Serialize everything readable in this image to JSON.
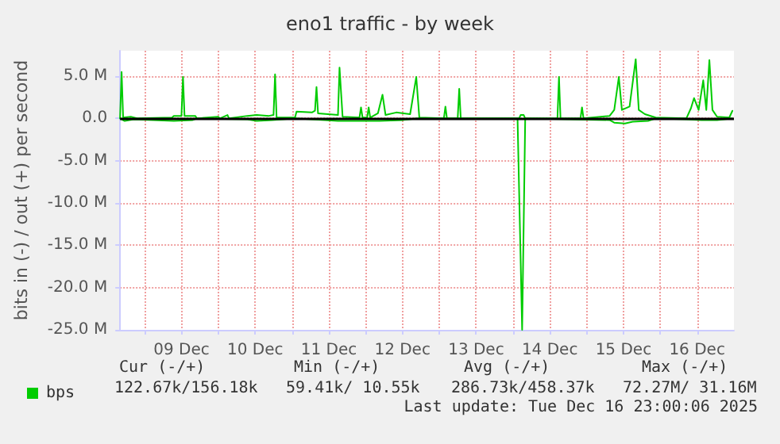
{
  "chart_data": {
    "type": "line",
    "title": "eno1 traffic - by week",
    "ylabel": "bits in (-) / out (+) per second",
    "xlim": [
      "2025-12-08T16:00",
      "2025-12-17T00:00"
    ],
    "xticks": [
      {
        "value": "2025-12-09T00:00",
        "label": null
      },
      {
        "value": "2025-12-09T12:00",
        "label": "09 Dec"
      },
      {
        "value": "2025-12-10T00:00",
        "label": null
      },
      {
        "value": "2025-12-10T12:00",
        "label": "10 Dec"
      },
      {
        "value": "2025-12-11T00:00",
        "label": null
      },
      {
        "value": "2025-12-11T12:00",
        "label": "11 Dec"
      },
      {
        "value": "2025-12-12T00:00",
        "label": null
      },
      {
        "value": "2025-12-12T12:00",
        "label": "12 Dec"
      },
      {
        "value": "2025-12-13T00:00",
        "label": null
      },
      {
        "value": "2025-12-13T12:00",
        "label": "13 Dec"
      },
      {
        "value": "2025-12-14T00:00",
        "label": null
      },
      {
        "value": "2025-12-14T12:00",
        "label": "14 Dec"
      },
      {
        "value": "2025-12-15T00:00",
        "label": null
      },
      {
        "value": "2025-12-15T12:00",
        "label": "15 Dec"
      },
      {
        "value": "2025-12-16T00:00",
        "label": null
      },
      {
        "value": "2025-12-16T12:00",
        "label": "16 Dec"
      }
    ],
    "ylim": [
      -25000000,
      8000000
    ],
    "yticks": [
      {
        "value": -25000000,
        "label": "-25.0 M"
      },
      {
        "value": -20000000,
        "label": "-20.0 M"
      },
      {
        "value": -15000000,
        "label": "-15.0 M"
      },
      {
        "value": -10000000,
        "label": "-10.0 M"
      },
      {
        "value": -5000000,
        "label": "-5.0 M"
      },
      {
        "value": 0,
        "label": "0.0"
      },
      {
        "value": 5000000,
        "label": "5.0 M"
      }
    ],
    "grid": true,
    "legend": "bottom left",
    "marker": "none",
    "line_style": "solid",
    "ref_lines": [
      {
        "axis": "y",
        "value": 0,
        "label": null,
        "color": "#000000"
      }
    ],
    "series": [
      {
        "name": "bps",
        "color": "#00cc00",
        "x": [
          "2025-12-08T16:00",
          "2025-12-08T16:30",
          "2025-12-08T17:00",
          "2025-12-08T19:30",
          "2025-12-08T21:30",
          "2025-12-09T09:00",
          "2025-12-09T09:30",
          "2025-12-09T12:00",
          "2025-12-09T12:30",
          "2025-12-09T13:00",
          "2025-12-09T16:30",
          "2025-12-09T17:00",
          "2025-12-10T00:00",
          "2025-12-10T00:30",
          "2025-12-10T03:00",
          "2025-12-10T03:30",
          "2025-12-10T09:30",
          "2025-12-10T12:30",
          "2025-12-10T16:30",
          "2025-12-10T18:00",
          "2025-12-10T18:30",
          "2025-12-10T19:00",
          "2025-12-11T01:00",
          "2025-12-11T01:30",
          "2025-12-11T06:30",
          "2025-12-11T07:30",
          "2025-12-11T08:00",
          "2025-12-11T08:30",
          "2025-12-11T15:00",
          "2025-12-11T15:30",
          "2025-12-11T16:30",
          "2025-12-11T22:00",
          "2025-12-11T22:30",
          "2025-12-11T23:00",
          "2025-12-12T00:30",
          "2025-12-12T01:00",
          "2025-12-12T01:30",
          "2025-12-12T04:00",
          "2025-12-12T05:30",
          "2025-12-12T06:30",
          "2025-12-12T10:00",
          "2025-12-12T14:30",
          "2025-12-12T16:30",
          "2025-12-12T17:30",
          "2025-12-13T01:30",
          "2025-12-13T02:00",
          "2025-12-13T02:30",
          "2025-12-13T06:00",
          "2025-12-13T06:30",
          "2025-12-13T07:00",
          "2025-12-14T02:00",
          "2025-12-14T02:30",
          "2025-12-14T03:30",
          "2025-12-14T04:00",
          "2025-12-14T14:30",
          "2025-12-14T15:00",
          "2025-12-14T15:30",
          "2025-12-14T22:00",
          "2025-12-14T22:30",
          "2025-12-14T23:00",
          "2025-12-15T07:30",
          "2025-12-15T09:00",
          "2025-12-15T10:30",
          "2025-12-15T11:30",
          "2025-12-15T14:00",
          "2025-12-15T16:00",
          "2025-12-15T17:00",
          "2025-12-15T19:00",
          "2025-12-15T22:30",
          "2025-12-16T08:30",
          "2025-12-16T10:00",
          "2025-12-16T11:00",
          "2025-12-16T12:30",
          "2025-12-16T14:00",
          "2025-12-16T15:00",
          "2025-12-16T16:00",
          "2025-12-16T17:00",
          "2025-12-16T18:30",
          "2025-12-16T22:30",
          "2025-12-16T23:30"
        ],
        "values": [
          0,
          5500000,
          100000,
          200000,
          0,
          100000,
          300000,
          300000,
          4900000,
          300000,
          300000,
          0,
          200000,
          0,
          400000,
          0,
          300000,
          400000,
          300000,
          400000,
          5200000,
          100000,
          100000,
          800000,
          700000,
          900000,
          3700000,
          600000,
          400000,
          6000000,
          200000,
          100000,
          1300000,
          100000,
          100000,
          1300000,
          100000,
          600000,
          2800000,
          400000,
          700000,
          500000,
          4900000,
          100000,
          0,
          1400000,
          0,
          0,
          3500000,
          0,
          0,
          400000,
          400000,
          0,
          0,
          4900000,
          0,
          0,
          1300000,
          0,
          300000,
          1000000,
          4900000,
          1000000,
          1400000,
          7000000,
          1000000,
          500000,
          100000,
          0,
          1200000,
          2400000,
          1000000,
          4500000,
          1000000,
          6900000,
          1000000,
          200000,
          100000,
          900000
        ]
      },
      {
        "color": "#00cc00",
        "x": [
          "2025-12-08T16:00",
          "2025-12-08T17:30",
          "2025-12-08T20:30",
          "2025-12-09T09:30",
          "2025-12-09T15:30",
          "2025-12-09T17:00",
          "2025-12-10T09:30",
          "2025-12-10T12:30",
          "2025-12-10T17:30",
          "2025-12-11T01:00",
          "2025-12-11T06:30",
          "2025-12-11T15:00",
          "2025-12-12T04:30",
          "2025-12-12T12:00",
          "2025-12-12T17:00",
          "2025-12-14T01:30",
          "2025-12-14T03:00",
          "2025-12-14T04:00",
          "2025-12-15T07:30",
          "2025-12-15T09:00",
          "2025-12-15T12:30",
          "2025-12-15T15:00",
          "2025-12-15T20:00",
          "2025-12-15T22:30",
          "2025-12-16T08:30",
          "2025-12-16T13:30",
          "2025-12-16T18:30",
          "2025-12-16T23:30"
        ],
        "values": [
          0,
          -300000,
          -100000,
          -300000,
          -200000,
          0,
          -100000,
          -300000,
          -200000,
          0,
          -100000,
          -300000,
          -300000,
          -200000,
          0,
          0,
          -25000000,
          0,
          -200000,
          -500000,
          -600000,
          -400000,
          -300000,
          0,
          -100000,
          -200000,
          -200000,
          0
        ]
      }
    ],
    "annotations": [
      "Cur (-/+)",
      "Min (-/+)",
      "Avg (-/+)",
      "Max (-/+)",
      "122.67k/156.18k",
      "59.41k/ 10.55k",
      "286.73k/458.37k",
      "72.27M/ 31.16M",
      "Last update: Tue Dec 16 23:00:06 2025"
    ]
  }
}
